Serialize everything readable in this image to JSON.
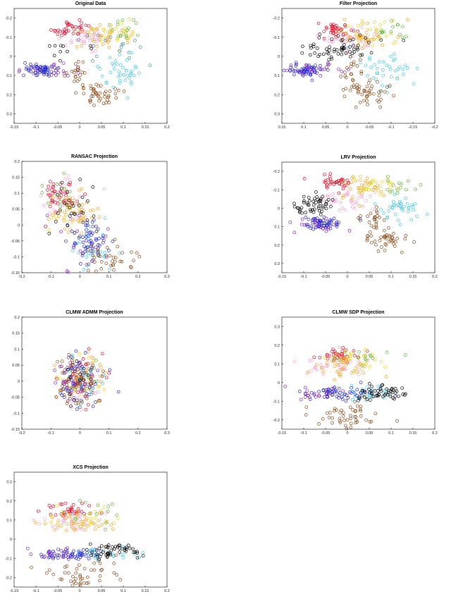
{
  "chart_data": [
    {
      "type": "scatter",
      "title": "Original Data",
      "xlabel": "",
      "ylabel": "",
      "xlim": [
        -0.15,
        0.2
      ],
      "ylim": [
        -0.25,
        0.35
      ],
      "y_reversed": true,
      "xticks": [
        "-0.15",
        "-0.1",
        "-0.05",
        "0",
        "0.05",
        "0.1",
        "0.15",
        "0.2"
      ],
      "yticks": [
        "-0.2",
        "-0.1",
        "0",
        "0.1",
        "0.2",
        "0.3"
      ],
      "grid": false,
      "legend": "none",
      "clusters": [
        {
          "color": "#e6001f",
          "cx": -0.02,
          "cy": -0.14,
          "sx": 0.02,
          "sy": 0.02,
          "n": 36
        },
        {
          "color": "#ff9fd0",
          "cx": 0.01,
          "cy": -0.09,
          "sx": 0.03,
          "sy": 0.03,
          "n": 38
        },
        {
          "color": "#f7a21a",
          "cx": 0.04,
          "cy": -0.11,
          "sx": 0.03,
          "sy": 0.03,
          "n": 34
        },
        {
          "color": "#f1d21a",
          "cx": 0.07,
          "cy": -0.12,
          "sx": 0.03,
          "sy": 0.03,
          "n": 26
        },
        {
          "color": "#5ab52f",
          "cx": 0.1,
          "cy": -0.14,
          "sx": 0.03,
          "sy": 0.03,
          "n": 14
        },
        {
          "color": "#3a8f8f",
          "cx": 0.08,
          "cy": -0.05,
          "sx": 0.03,
          "sy": 0.04,
          "n": 18
        },
        {
          "color": "#3fc6e8",
          "cx": 0.1,
          "cy": 0.08,
          "sx": 0.03,
          "sy": 0.05,
          "n": 40
        },
        {
          "color": "#1f1fd6",
          "cx": -0.09,
          "cy": 0.07,
          "sx": 0.02,
          "sy": 0.015,
          "n": 56
        },
        {
          "color": "#8a1fc0",
          "cx": -0.06,
          "cy": 0.07,
          "sx": 0.04,
          "sy": 0.02,
          "n": 20
        },
        {
          "color": "#8b4513",
          "cx": 0.0,
          "cy": 0.1,
          "sx": 0.015,
          "sy": 0.04,
          "n": 24
        },
        {
          "color": "#8b4513",
          "cx": 0.05,
          "cy": 0.21,
          "sx": 0.025,
          "sy": 0.03,
          "n": 40
        },
        {
          "color": "#000000",
          "cx": -0.03,
          "cy": -0.04,
          "sx": 0.035,
          "sy": 0.03,
          "n": 10
        }
      ]
    },
    {
      "type": "scatter",
      "title": "Filter Projection",
      "xlabel": "",
      "ylabel": "",
      "xlim": [
        -0.2,
        0.15
      ],
      "ylim": [
        -0.25,
        0.35
      ],
      "x_reversed": true,
      "y_reversed": true,
      "xticks": [
        "0.15",
        "0.1",
        "0.05",
        "0",
        "-0.05",
        "-0.1",
        "-0.15",
        "-0.2"
      ],
      "yticks": [
        "-0.2",
        "-0.1",
        "0",
        "0.1",
        "0.2",
        "0.3"
      ],
      "grid": false,
      "legend": "none",
      "clusters": [
        {
          "color": "#e6001f",
          "cx": 0.02,
          "cy": -0.14,
          "sx": 0.02,
          "sy": 0.02,
          "n": 36
        },
        {
          "color": "#ff9fd0",
          "cx": -0.01,
          "cy": -0.09,
          "sx": 0.03,
          "sy": 0.03,
          "n": 38
        },
        {
          "color": "#f7a21a",
          "cx": -0.04,
          "cy": -0.11,
          "sx": 0.03,
          "sy": 0.03,
          "n": 34
        },
        {
          "color": "#f1d21a",
          "cx": -0.07,
          "cy": -0.12,
          "sx": 0.03,
          "sy": 0.03,
          "n": 26
        },
        {
          "color": "#5ab52f",
          "cx": -0.1,
          "cy": -0.14,
          "sx": 0.03,
          "sy": 0.03,
          "n": 14
        },
        {
          "color": "#3fc6e8",
          "cx": -0.09,
          "cy": 0.06,
          "sx": 0.03,
          "sy": 0.05,
          "n": 40
        },
        {
          "color": "#1f1fd6",
          "cx": 0.09,
          "cy": 0.07,
          "sx": 0.02,
          "sy": 0.015,
          "n": 56
        },
        {
          "color": "#8a1fc0",
          "cx": 0.07,
          "cy": 0.07,
          "sx": 0.04,
          "sy": 0.02,
          "n": 20
        },
        {
          "color": "#8b4513",
          "cx": -0.01,
          "cy": 0.1,
          "sx": 0.015,
          "sy": 0.04,
          "n": 24
        },
        {
          "color": "#8b4513",
          "cx": -0.05,
          "cy": 0.2,
          "sx": 0.025,
          "sy": 0.03,
          "n": 40
        },
        {
          "color": "#000000",
          "cx": 0.02,
          "cy": -0.04,
          "sx": 0.045,
          "sy": 0.035,
          "n": 60
        }
      ]
    },
    {
      "type": "scatter",
      "title": "RANSAC Projection",
      "xlabel": "",
      "ylabel": "",
      "xlim": [
        -0.22,
        0.33
      ],
      "ylim": [
        -0.15,
        0.2
      ],
      "xticks": [
        "-0.2",
        "-0.1",
        "0",
        "0.1",
        "0.2",
        "0.3"
      ],
      "yticks": [
        "-0.15",
        "-0.1",
        "-0.05",
        "0",
        "0.05",
        "0.1",
        "0.15",
        "0.2"
      ],
      "grid": false,
      "legend": "none",
      "clusters": [
        {
          "color": "#e6001f",
          "cx": -0.07,
          "cy": 0.1,
          "sx": 0.04,
          "sy": 0.03,
          "n": 40
        },
        {
          "color": "#ff9fd0",
          "cx": -0.06,
          "cy": 0.07,
          "sx": 0.05,
          "sy": 0.04,
          "n": 40
        },
        {
          "color": "#f7a21a",
          "cx": -0.02,
          "cy": 0.04,
          "sx": 0.04,
          "sy": 0.03,
          "n": 40
        },
        {
          "color": "#f1d21a",
          "cx": -0.03,
          "cy": 0.06,
          "sx": 0.04,
          "sy": 0.03,
          "n": 20
        },
        {
          "color": "#5ab52f",
          "cx": -0.08,
          "cy": 0.1,
          "sx": 0.04,
          "sy": 0.03,
          "n": 10
        },
        {
          "color": "#1f1fd6",
          "cx": 0.03,
          "cy": -0.05,
          "sx": 0.03,
          "sy": 0.03,
          "n": 56
        },
        {
          "color": "#8a1fc0",
          "cx": 0.0,
          "cy": -0.06,
          "sx": 0.05,
          "sy": 0.04,
          "n": 20
        },
        {
          "color": "#3fc6e8",
          "cx": 0.06,
          "cy": -0.06,
          "sx": 0.05,
          "sy": 0.04,
          "n": 26
        },
        {
          "color": "#8b4513",
          "cx": 0.1,
          "cy": -0.11,
          "sx": 0.05,
          "sy": 0.025,
          "n": 40
        },
        {
          "color": "#000000",
          "cx": -0.02,
          "cy": 0.05,
          "sx": 0.05,
          "sy": 0.04,
          "n": 30
        }
      ]
    },
    {
      "type": "scatter",
      "title": "LRV Projection",
      "xlabel": "",
      "ylabel": "",
      "xlim": [
        -0.15,
        0.2
      ],
      "ylim": [
        -0.25,
        0.35
      ],
      "y_reversed": true,
      "xticks": [
        "-0.15",
        "-0.1",
        "-0.05",
        "0",
        "0.05",
        "0.1",
        "0.15",
        "0.2"
      ],
      "yticks": [
        "-0.2",
        "-0.1",
        "0",
        "0.1",
        "0.2",
        "0.3"
      ],
      "grid": false,
      "legend": "none",
      "clusters": [
        {
          "color": "#e6001f",
          "cx": -0.03,
          "cy": -0.14,
          "sx": 0.025,
          "sy": 0.02,
          "n": 36
        },
        {
          "color": "#ff9fd0",
          "cx": 0.0,
          "cy": -0.05,
          "sx": 0.03,
          "sy": 0.03,
          "n": 38
        },
        {
          "color": "#f7a21a",
          "cx": 0.04,
          "cy": -0.1,
          "sx": 0.03,
          "sy": 0.03,
          "n": 34
        },
        {
          "color": "#f1d21a",
          "cx": 0.06,
          "cy": -0.11,
          "sx": 0.03,
          "sy": 0.03,
          "n": 26
        },
        {
          "color": "#5ab52f",
          "cx": 0.1,
          "cy": -0.12,
          "sx": 0.03,
          "sy": 0.03,
          "n": 14
        },
        {
          "color": "#3fc6e8",
          "cx": 0.12,
          "cy": 0.0,
          "sx": 0.03,
          "sy": 0.04,
          "n": 40
        },
        {
          "color": "#1f1fd6",
          "cx": -0.06,
          "cy": 0.08,
          "sx": 0.025,
          "sy": 0.02,
          "n": 56
        },
        {
          "color": "#8a1fc0",
          "cx": -0.06,
          "cy": 0.09,
          "sx": 0.04,
          "sy": 0.02,
          "n": 20
        },
        {
          "color": "#8b4513",
          "cx": 0.06,
          "cy": 0.06,
          "sx": 0.02,
          "sy": 0.03,
          "n": 24
        },
        {
          "color": "#8b4513",
          "cx": 0.09,
          "cy": 0.17,
          "sx": 0.025,
          "sy": 0.03,
          "n": 40
        },
        {
          "color": "#000000",
          "cx": -0.08,
          "cy": -0.02,
          "sx": 0.025,
          "sy": 0.03,
          "n": 50
        }
      ]
    },
    {
      "type": "scatter",
      "title": "CLMW ADMM Projection",
      "xlabel": "",
      "ylabel": "",
      "xlim": [
        -0.22,
        0.33
      ],
      "ylim": [
        -0.15,
        0.2
      ],
      "xticks": [
        "-0.2",
        "-0.1",
        "0",
        "0.1",
        "0.2",
        "0.3"
      ],
      "yticks": [
        "-0.15",
        "-0.1",
        "-0.05",
        "0",
        "0.05",
        "0.1",
        "0.15",
        "0.2"
      ],
      "grid": false,
      "legend": "none",
      "clusters": [
        {
          "color": "#e6001f",
          "cx": 0.0,
          "cy": 0.0,
          "sx": 0.04,
          "sy": 0.04,
          "n": 40
        },
        {
          "color": "#ff9fd0",
          "cx": 0.0,
          "cy": 0.0,
          "sx": 0.04,
          "sy": 0.04,
          "n": 40
        },
        {
          "color": "#f7a21a",
          "cx": 0.0,
          "cy": 0.0,
          "sx": 0.04,
          "sy": 0.04,
          "n": 40
        },
        {
          "color": "#f1d21a",
          "cx": 0.01,
          "cy": 0.0,
          "sx": 0.04,
          "sy": 0.04,
          "n": 20
        },
        {
          "color": "#5ab52f",
          "cx": 0.02,
          "cy": 0.01,
          "sx": 0.04,
          "sy": 0.04,
          "n": 12
        },
        {
          "color": "#1f1fd6",
          "cx": -0.01,
          "cy": -0.01,
          "sx": 0.04,
          "sy": 0.045,
          "n": 50
        },
        {
          "color": "#8a1fc0",
          "cx": -0.02,
          "cy": 0.0,
          "sx": 0.04,
          "sy": 0.04,
          "n": 24
        },
        {
          "color": "#3fc6e8",
          "cx": 0.01,
          "cy": 0.0,
          "sx": 0.04,
          "sy": 0.04,
          "n": 22
        },
        {
          "color": "#8b4513",
          "cx": 0.0,
          "cy": 0.0,
          "sx": 0.04,
          "sy": 0.04,
          "n": 50
        },
        {
          "color": "#000000",
          "cx": 0.0,
          "cy": 0.0,
          "sx": 0.04,
          "sy": 0.04,
          "n": 14
        }
      ]
    },
    {
      "type": "scatter",
      "title": "CLMW SDP Projection",
      "xlabel": "",
      "ylabel": "",
      "xlim": [
        -0.15,
        0.2
      ],
      "ylim": [
        -0.25,
        0.35
      ],
      "xticks": [
        "-0.15",
        "-0.1",
        "-0.05",
        "0",
        "0.05",
        "0.1",
        "0.15",
        "0.2"
      ],
      "yticks": [
        "-0.2",
        "-0.1",
        "0",
        "0.1",
        "0.2",
        "0.3"
      ],
      "grid": false,
      "legend": "none",
      "clusters": [
        {
          "color": "#e6001f",
          "cx": -0.02,
          "cy": 0.15,
          "sx": 0.03,
          "sy": 0.02,
          "n": 36
        },
        {
          "color": "#ff9fd0",
          "cx": -0.03,
          "cy": 0.1,
          "sx": 0.04,
          "sy": 0.03,
          "n": 38
        },
        {
          "color": "#f7a21a",
          "cx": 0.0,
          "cy": 0.08,
          "sx": 0.04,
          "sy": 0.03,
          "n": 34
        },
        {
          "color": "#f1d21a",
          "cx": 0.01,
          "cy": 0.12,
          "sx": 0.04,
          "sy": 0.03,
          "n": 26
        },
        {
          "color": "#5ab52f",
          "cx": 0.04,
          "cy": 0.14,
          "sx": 0.04,
          "sy": 0.03,
          "n": 14
        },
        {
          "color": "#1f1fd6",
          "cx": -0.02,
          "cy": -0.06,
          "sx": 0.04,
          "sy": 0.015,
          "n": 56
        },
        {
          "color": "#8a1fc0",
          "cx": -0.06,
          "cy": -0.06,
          "sx": 0.04,
          "sy": 0.02,
          "n": 20
        },
        {
          "color": "#3fc6e8",
          "cx": 0.05,
          "cy": -0.06,
          "sx": 0.04,
          "sy": 0.02,
          "n": 26
        },
        {
          "color": "#000000",
          "cx": 0.08,
          "cy": -0.06,
          "sx": 0.03,
          "sy": 0.02,
          "n": 50
        },
        {
          "color": "#8b4513",
          "cx": -0.01,
          "cy": -0.17,
          "sx": 0.04,
          "sy": 0.04,
          "n": 50
        }
      ]
    },
    {
      "type": "scatter",
      "title": "XCS Projection",
      "xlabel": "",
      "ylabel": "",
      "xlim": [
        -0.15,
        0.2
      ],
      "ylim": [
        -0.25,
        0.35
      ],
      "xticks": [
        "-0.15",
        "-0.1",
        "-0.05",
        "0",
        "0.05",
        "0.1",
        "0.15",
        "0.2"
      ],
      "yticks": [
        "-0.2",
        "-0.1",
        "0",
        "0.1",
        "0.2",
        "0.3"
      ],
      "grid": false,
      "legend": "none",
      "clusters": [
        {
          "color": "#e6001f",
          "cx": -0.02,
          "cy": 0.15,
          "sx": 0.03,
          "sy": 0.02,
          "n": 36
        },
        {
          "color": "#ff9fd0",
          "cx": -0.03,
          "cy": 0.1,
          "sx": 0.04,
          "sy": 0.03,
          "n": 38
        },
        {
          "color": "#f7a21a",
          "cx": 0.0,
          "cy": 0.08,
          "sx": 0.04,
          "sy": 0.03,
          "n": 34
        },
        {
          "color": "#f1d21a",
          "cx": 0.01,
          "cy": 0.12,
          "sx": 0.04,
          "sy": 0.03,
          "n": 26
        },
        {
          "color": "#5ab52f",
          "cx": 0.04,
          "cy": 0.14,
          "sx": 0.04,
          "sy": 0.03,
          "n": 14
        },
        {
          "color": "#1f1fd6",
          "cx": -0.02,
          "cy": -0.08,
          "sx": 0.04,
          "sy": 0.015,
          "n": 56
        },
        {
          "color": "#8a1fc0",
          "cx": -0.06,
          "cy": -0.08,
          "sx": 0.04,
          "sy": 0.02,
          "n": 20
        },
        {
          "color": "#3fc6e8",
          "cx": 0.05,
          "cy": -0.08,
          "sx": 0.04,
          "sy": 0.02,
          "n": 26
        },
        {
          "color": "#000000",
          "cx": 0.08,
          "cy": -0.06,
          "sx": 0.03,
          "sy": 0.02,
          "n": 50
        },
        {
          "color": "#8b4513",
          "cx": 0.0,
          "cy": -0.19,
          "sx": 0.04,
          "sy": 0.04,
          "n": 50
        }
      ]
    }
  ]
}
